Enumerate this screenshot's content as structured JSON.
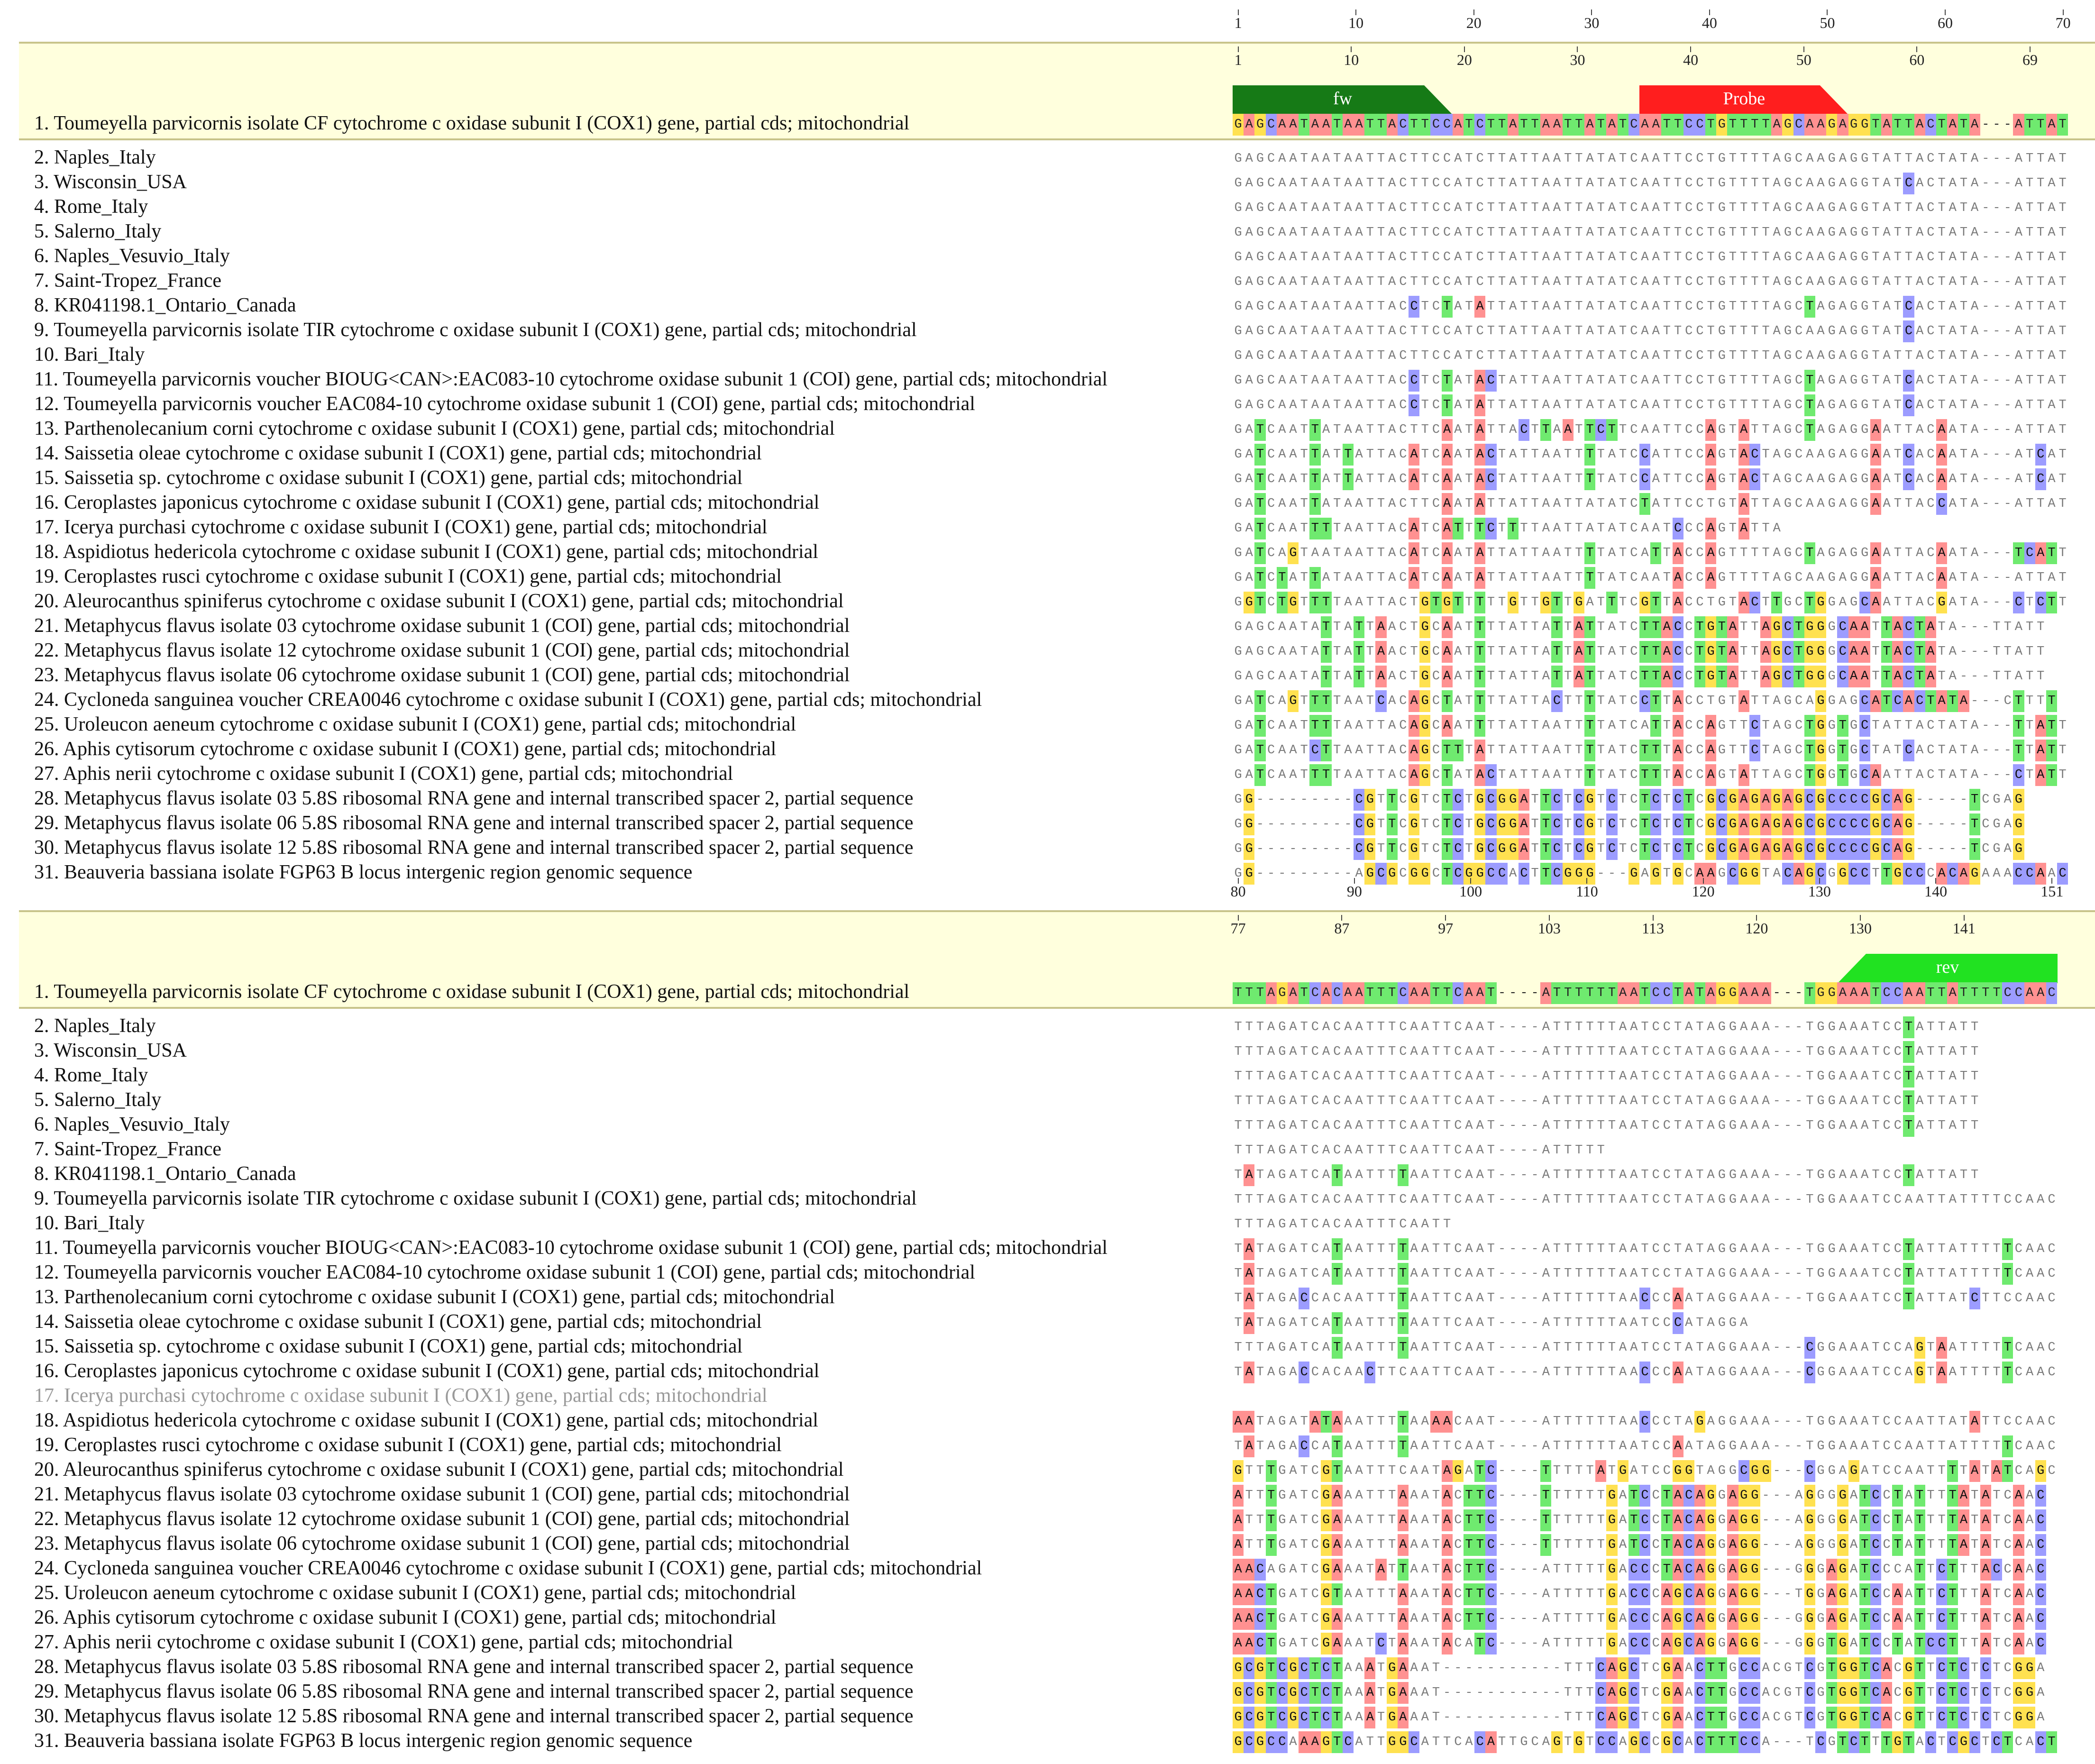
{
  "colors": {
    "A": "#ff9191",
    "C": "#9c9cff",
    "G": "#ffe150",
    "T": "#6fea6f",
    "consensus_band": "#ffffdd",
    "feature_fw": "#167a16",
    "feature_probe": "#ff1e1e",
    "feature_rev": "#21e221"
  },
  "consensus_label": "1. Toumeyella parvicornis isolate CF cytochrome c oxidase subunit I (COX1) gene, partial cds; mitochondrial",
  "sequence_labels": [
    "2. Naples_Italy",
    "3. Wisconsin_USA",
    "4. Rome_Italy",
    "5. Salerno_Italy",
    "6. Naples_Vesuvio_Italy",
    "7. Saint-Tropez_France",
    "8. KR041198.1_Ontario_Canada",
    "9. Toumeyella parvicornis isolate TIR cytochrome c oxidase subunit I (COX1) gene, partial cds; mitochondrial",
    "10. Bari_Italy",
    "11. Toumeyella parvicornis voucher BIOUG<CAN>:EAC083-10 cytochrome oxidase subunit 1 (COI) gene, partial cds; mitochondrial",
    "12. Toumeyella parvicornis voucher EAC084-10 cytochrome oxidase subunit 1 (COI) gene, partial cds; mitochondrial",
    "13. Parthenolecanium corni cytochrome c oxidase subunit I (COX1) gene, partial cds; mitochondrial",
    "14. Saissetia oleae cytochrome c oxidase subunit I (COX1) gene, partial cds; mitochondrial",
    "15. Saissetia sp. cytochrome c oxidase subunit I (COX1) gene, partial cds; mitochondrial",
    "16. Ceroplastes japonicus cytochrome c oxidase subunit I (COX1) gene, partial cds; mitochondrial",
    "17. Icerya purchasi cytochrome c oxidase subunit I (COX1) gene, partial cds; mitochondrial",
    "18. Aspidiotus hedericola cytochrome c oxidase subunit I (COX1) gene, partial cds; mitochondrial",
    "19. Ceroplastes rusci cytochrome c oxidase subunit I (COX1) gene, partial cds; mitochondrial",
    "20. Aleurocanthus spiniferus cytochrome c oxidase subunit I (COX1) gene, partial cds; mitochondrial",
    "21. Metaphycus flavus isolate 03 cytochrome oxidase subunit 1 (COI) gene, partial cds; mitochondrial",
    "22. Metaphycus flavus isolate 12 cytochrome oxidase subunit 1 (COI) gene, partial cds; mitochondrial",
    "23. Metaphycus flavus isolate 06 cytochrome oxidase subunit 1 (COI) gene, partial cds; mitochondrial",
    "24. Cycloneda sanguinea voucher CREA0046 cytochrome c oxidase subunit I (COX1) gene, partial cds; mitochondrial",
    "25. Uroleucon aeneum cytochrome c oxidase subunit I (COX1) gene, partial cds; mitochondrial",
    "26. Aphis cytisorum cytochrome c oxidase subunit I (COX1) gene, partial cds; mitochondrial",
    "27. Aphis nerii cytochrome c oxidase subunit I (COX1) gene, partial cds; mitochondrial",
    "28. Metaphycus flavus isolate 03 5.8S ribosomal RNA gene and internal transcribed spacer 2, partial sequence",
    "29. Metaphycus flavus isolate 06 5.8S ribosomal RNA gene and internal transcribed spacer 2, partial sequence",
    "30. Metaphycus flavus isolate 12 5.8S ribosomal RNA gene and internal transcribed spacer 2, partial sequence",
    "31. Beauveria bassiana isolate FGP63 B locus intergenic region genomic sequence"
  ],
  "block1": {
    "ruler_alignment": [
      "1",
      "10",
      "20",
      "30",
      "40",
      "50",
      "60",
      "70"
    ],
    "ruler_consensus": [
      "1",
      "10",
      "20",
      "30",
      "40",
      "50",
      "60",
      "69"
    ],
    "features": [
      {
        "name": "fw",
        "start": 1,
        "end": 20
      },
      {
        "name": "Probe",
        "start": 38,
        "end": 56
      }
    ],
    "consensus": "GAGCAATAATAATTACTTCCATCTTATTAATTATATCAATTCCTGTTTTAGCAAGAGGTATTACTATA---ATTAT",
    "rows": [
      "GAGCAATAATAATTACTTCCATCTTATTAATTATATCAATTCCTGTTTTAGCAAGAGGTATTACTATA---ATTAT",
      "GAGCAATAATAATTACTTCCATCTTATTAATTATATCAATTCCTGTTTTAGCAAGAGGTATCACTATA---ATTAT",
      "GAGCAATAATAATTACTTCCATCTTATTAATTATATCAATTCCTGTTTTAGCAAGAGGTATTACTATA---ATTAT",
      "GAGCAATAATAATTACTTCCATCTTATTAATTATATCAATTCCTGTTTTAGCAAGAGGTATTACTATA---ATTAT",
      "GAGCAATAATAATTACTTCCATCTTATTAATTATATCAATTCCTGTTTTAGCAAGAGGTATTACTATA---ATTAT",
      "GAGCAATAATAATTACTTCCATCTTATTAATTATATCAATTCCTGTTTTAGCAAGAGGTATTACTATA---ATTAT",
      "GAGCAATAATAATTACCTCTATATTATTAATTATATCAATTCCTGTTTTAGCTAGAGGTATCACTATA---ATTAT",
      "GAGCAATAATAATTACTTCCATCTTATTAATTATATCAATTCCTGTTTTAGCAAGAGGTATCACTATA---ATTAT",
      "GAGCAATAATAATTACTTCCATCTTATTAATTATATCAATTCCTGTTTTAGCAAGAGGTATTACTATA---ATTAT",
      "GAGCAATAATAATTACCTCTATACTATTAATTATATCAATTCCTGTTTTAGCTAGAGGTATCACTATA---ATTAT",
      "GAGCAATAATAATTACCTCTATATTATTAATTATATCAATTCCTGTTTTAGCTAGAGGTATCACTATA---ATTAT",
      "GATCAATTATAATTACTTCAATATTACTTAATTCTTCAATTCCAGTATTAGCTAGAGGAATTACAATA---ATTAT",
      "GATCAATTATTATTACATCAATACTATTAATTTTATCCATTCCAGTACTAGCAAGAGGAATCACAATA---ATCAT",
      "GATCAATTATTATTACATCAATACTATTAATTTTATCCATTCCAGTACTAGCAAGAGGAATCACAATA---ATCAT",
      "GATCAATTATAATTACTTCAATATTATTAATTATATCTATTCCTGTATTAGCAAGAGGAATTACCATA---ATTAT",
      "GATCAATTTTAATTACATCATTTCTTTTAATTATATCAATCCCAGTATTA",
      "GATCAGTAATAATTACATCAATATTATTAATTTTATCATTACCAGTTTTAGCTAGAGGAATTACAATA---TCATT",
      "GATCTATTATAATTACATCAATATTATTAATTTTATCAATACCAGTTTTAGCAAGAGGAATTACAATA---ATTAT",
      "GGTCTGTTTTAATTACTGTGTTTTTGTTGTTGATTTCGTTACCTGTACTTGCTGGAGCAATTACGATA---CTCTT",
      "GAGCAATATTATTAACTGCAATTTTATTATTATTATCTTACCTGTATTAGCTGGGCAATTACTATA---TTATT",
      "GAGCAATATTATTAACTGCAATTTTATTATTATTATCTTACCTGTATTAGCTGGGCAATTACTATA---TTATT",
      "GAGCAATATTATTAACTGCAATTTTATTATTATTATCTTACCTGTATTAGCTGGGCAATTACTATA---TTATT",
      "GATCAGTTTTAATCACAGCTATTTTATTACTTTTATCCTTACCTGTATTAGCAGGAGCATCACTATA---CTTTT",
      "GATCAATTTTAATTACAGCAATTTTATTAATTTTATCATTACCAGTTCTAGCTGGTGCTATTACTATA---TTATT",
      "GATCAATCTTAATTACAGCTTTATTATTAATTTTATCTTTACCAGTTCTAGCTGGTGCTATCACTATA---TTATT",
      "GATCAATTTTAATTACAGCTATACTATTAATTTTATCTTTACCAGTATTAGCTGGTGCAATTACTATA---CTATT",
      "GG---------CGTTCGTCTCTGCGGATTCTCGTCTCTCTCTCGCGAGAGAGCGCCCCGCAG-----TCGAG",
      "GG---------CGTTCGTCTCTGCGGATTCTCGTCTCTCTCTCGCGAGAGAGCGCCCCGCAG-----TCGAG",
      "GG---------CGTTCGTCTCTGCGGATTCTCGTCTCTCTCTCGCGAGAGAGCGCCCCGCAG-----TCGAG",
      "GG---------AGCGCGGCTCGGCCACTTCGGG---GAGTGCAAGCGGTACAGCGGCCTTGCCCACAGAAACCAAC"
    ]
  },
  "block2": {
    "ruler_alignment": [
      "80",
      "90",
      "100",
      "110",
      "120",
      "130",
      "140",
      "151"
    ],
    "ruler_consensus": [
      "77",
      "87",
      "97",
      "103",
      "113",
      "120",
      "130",
      "141"
    ],
    "features": [
      {
        "name": "rev",
        "start": 132,
        "end": 151
      }
    ],
    "consensus": "TTTAGATCACAATTTCAATTCAAT----ATTTTTTAATCCTATAGGAAA---TGGAAATCCAATTATTTTCCAAC",
    "rows": [
      "TTTAGATCACAATTTCAATTCAAT----ATTTTTTAATCCTATAGGAAA---TGGAAATCCTATTATT",
      "TTTAGATCACAATTTCAATTCAAT----ATTTTTTAATCCTATAGGAAA---TGGAAATCCTATTATT",
      "TTTAGATCACAATTTCAATTCAAT----ATTTTTTAATCCTATAGGAAA---TGGAAATCCTATTATT",
      "TTTAGATCACAATTTCAATTCAAT----ATTTTTTAATCCTATAGGAAA---TGGAAATCCTATTATT",
      "TTTAGATCACAATTTCAATTCAAT----ATTTTTTAATCCTATAGGAAA---TGGAAATCCTATTATT",
      "TTTAGATCACAATTTCAATTCAAT----ATTTTT",
      "TATAGATCATAATTTTAATTCAAT----ATTTTTTAATCCTATAGGAAA---TGGAAATCCTATTATT",
      "TTTAGATCACAATTTCAATTCAAT----ATTTTTTAATCCTATAGGAAA---TGGAAATCCAATTATTTTCCAAC",
      "TTTAGATCACAATTTCAATT",
      "TATAGATCATAATTTTAATTCAAT----ATTTTTTAATCCTATAGGAAA---TGGAAATCCTATTATTTTTCAAC",
      "TATAGATCATAATTTTAATTCAAT----ATTTTTTAATCCTATAGGAAA---TGGAAATCCTATTATTTTTCAAC",
      "TATAGACCACAATTTTAATTCAAT----ATTTTTTAACCCAATAGGAAA---TGGAAATCCTATTATCTTCCAAC",
      "TATAGATCATAATTTTAATTCAAT----ATTTTTTAATCCCATAGGA",
      "TTTAGATCATAATTTTAATTCAAT----ATTTTTTAATCCTATAGGAAA---CGGAAATCCAGTAATTTTTCAAC",
      "TATAGACCACAACTTCAATTCAAT----ATTTTTTAACCCAATAGGAAA---CGGAAATCCAGTAATTTTTCAAC",
      "",
      "AATAGATATAAATTTTAAAACAAT----ATTTTTTAACCCTAGAGGAAA---TGGAAATCCAATTATATTCCAAC",
      "TATAGACCATAATTTTAATTCAAT----ATTTTTTAATCCAATAGGAAA---TGGAAATCCAATTATTTTTCAAC",
      "GTTTGATCGTAATTTCAATAGATC----TTTTTATGATCCGGTAGGCGG---CGGAGATCCAATTTTATATCAGC",
      "ATTTGATCGAAATTTAAATACTTC----TTTTTTGATCCTACAGGAGG---AGGGGATCCTATTTTATATCAAC",
      "ATTTGATCGAAATTTAAATACTTC----TTTTTTGATCCTACAGGAGG---AGGGGATCCTATTTTATATCAAC",
      "ATTTGATCGAAATTTAAATACTTC----TTTTTTGATCCTACAGGAGG---AGGGGATCCTATTTTATATCAAC",
      "AACAGATCGAAATATTAATACTTC----ATTTTTGACCCTACAGGAGG---GGGAGATCCCATTCTTTACCAAC",
      "AACTGATCGTAATTTAAATACTTC----ATTTTTGACCCAGCAGGAGG---TGGAGATCCAATTCTTTATCAAC",
      "AACTGATCGAAATTTAAATACTTC----ATTTTTGACCCAGCAGGAGG---GGGAGATCCAATTCTTTATCAAC",
      "AACTGATCGAAATCTAAATACATC----ATTTTTGACCCAGCAGGAGG---GGGTGATCCTATCCTTTATCAAC",
      "GCGTCGCTCTAAATGAAAT-----------TTTCAGCTCGAACTTGCCACGTCGTGGTCACGTTCTCTCTCGGA",
      "GCGTCGCTCTAAATGAAAT-----------TTTCAGCTCGAACTTGCCACGTCGTGGTCACGTTCTCTCTCGGA",
      "GCGTCGCTCTAAATGAAAT-----------TTTCAGCTCGAACTTGCCACGTCGTGGTCACGTTCTCTCTCGGA",
      "GCGCCAAAGTCATTGGCATTCACATTGCAGTGTCCAGCCGCACTTTCCA---TCGTCTTTGTACTCGCTCTCACT"
    ]
  }
}
